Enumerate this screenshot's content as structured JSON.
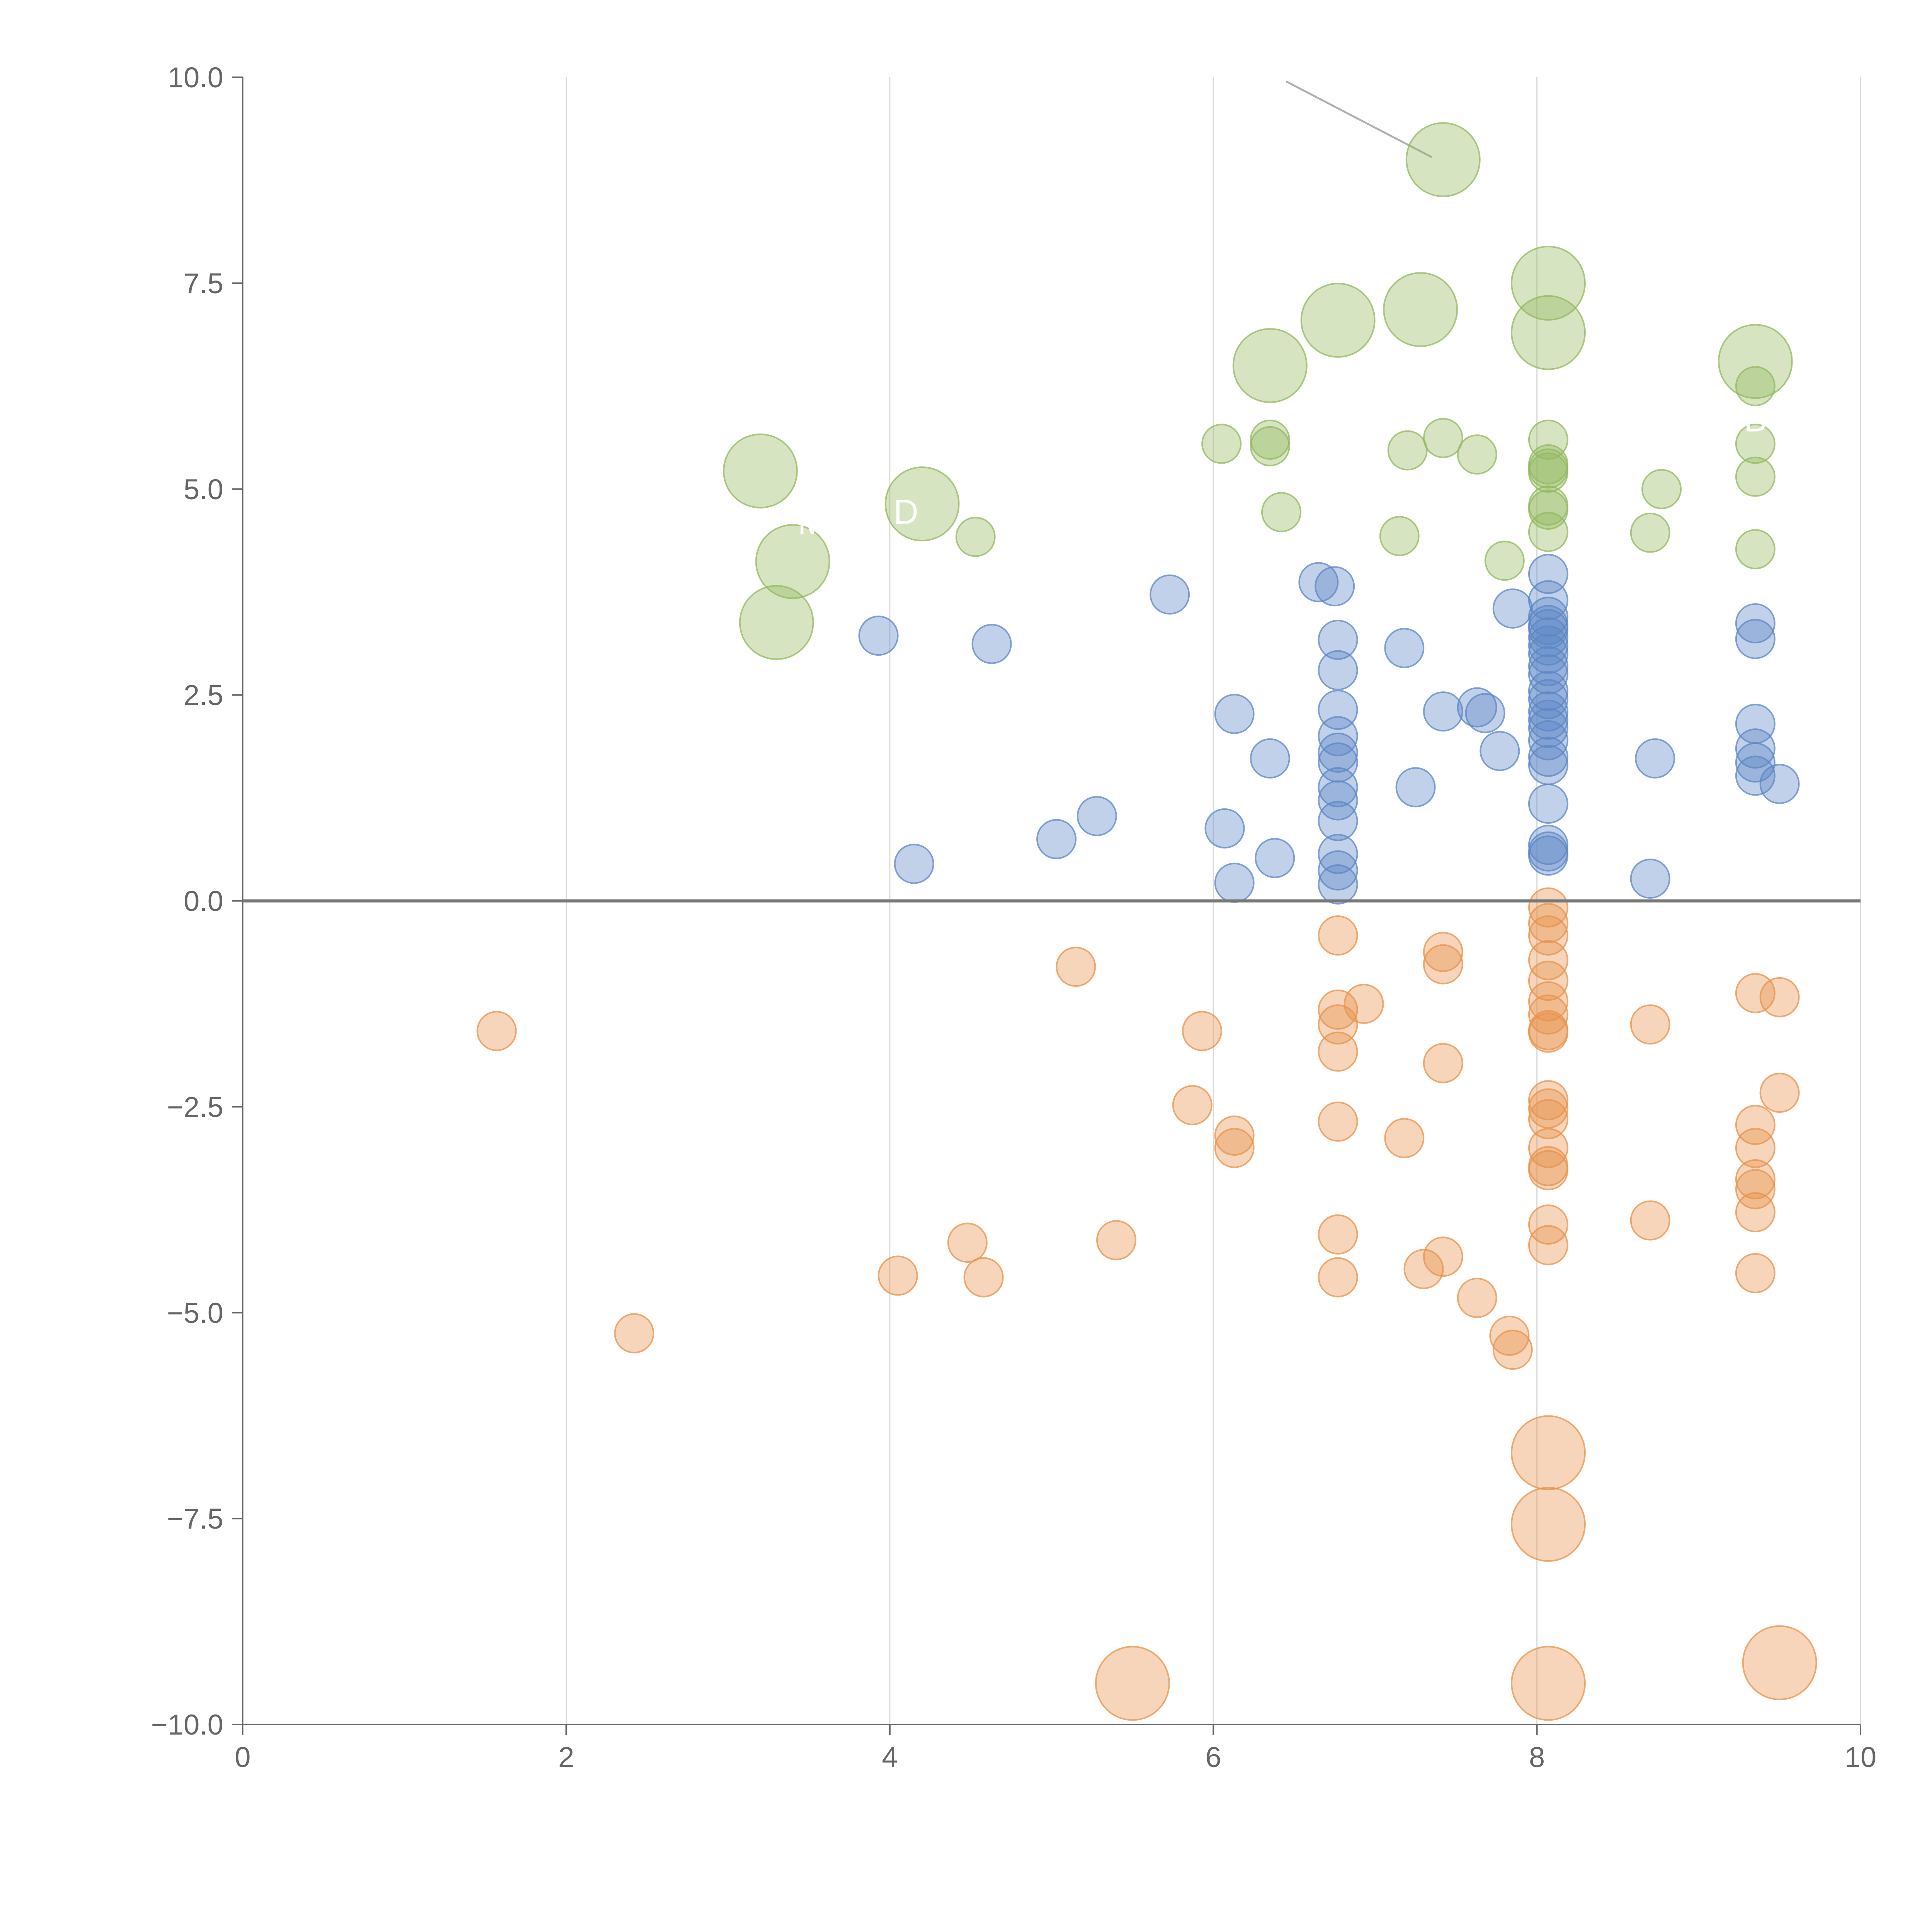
{
  "chart_data": {
    "type": "scatter",
    "title": "",
    "xlabel": "",
    "ylabel": "",
    "xlim": [
      0,
      10
    ],
    "ylim": [
      -10,
      10
    ],
    "xticks": [
      0,
      2,
      4,
      6,
      8,
      10
    ],
    "xtick_labels": [
      "0",
      "2",
      "4",
      "6",
      "8",
      "10"
    ],
    "yticks": [
      -10,
      -7.5,
      -5,
      -2.5,
      0,
      2.5,
      5,
      7.5,
      10
    ],
    "ytick_labels": [
      "−10.0",
      "−7.5",
      "−5.0",
      "−2.5",
      "0.0",
      "2.5",
      "5.0",
      "7.5",
      "10.0"
    ],
    "grid": "vertical",
    "legend": "none",
    "series": [
      {
        "color": "#92b85e",
        "points": [
          [
            7.42,
            9.0,
            "large"
          ],
          [
            8.07,
            7.5,
            "large"
          ],
          [
            6.77,
            7.05,
            "large"
          ],
          [
            7.28,
            7.18,
            "large"
          ],
          [
            8.07,
            6.9,
            "large"
          ],
          [
            6.35,
            6.5,
            "large"
          ],
          [
            9.35,
            6.55,
            "large"
          ],
          [
            3.2,
            5.22,
            "large"
          ],
          [
            4.2,
            4.82,
            "large"
          ],
          [
            3.4,
            4.12,
            "large"
          ],
          [
            3.3,
            3.38,
            "large"
          ],
          [
            6.05,
            5.55,
            "small"
          ],
          [
            6.35,
            5.6,
            "small"
          ],
          [
            6.35,
            5.52,
            "small"
          ],
          [
            7.42,
            5.62,
            "small"
          ],
          [
            7.2,
            5.47,
            "small"
          ],
          [
            7.63,
            5.42,
            "small"
          ],
          [
            8.07,
            5.6,
            "small"
          ],
          [
            8.07,
            5.3,
            "small"
          ],
          [
            8.07,
            5.25,
            "small"
          ],
          [
            8.07,
            5.2,
            "small"
          ],
          [
            8.07,
            4.8,
            "small"
          ],
          [
            8.07,
            4.75,
            "small"
          ],
          [
            8.07,
            4.48,
            "small"
          ],
          [
            8.77,
            5.0,
            "small"
          ],
          [
            8.7,
            4.47,
            "small"
          ],
          [
            9.35,
            6.25,
            "small"
          ],
          [
            9.35,
            5.55,
            "small"
          ],
          [
            9.35,
            5.15,
            "small"
          ],
          [
            9.35,
            4.27,
            "small"
          ],
          [
            6.42,
            4.72,
            "small"
          ],
          [
            4.53,
            4.42,
            "small"
          ],
          [
            7.15,
            4.43,
            "small"
          ],
          [
            7.8,
            4.13,
            "small"
          ]
        ]
      },
      {
        "color": "#5b86c5",
        "points": [
          [
            3.93,
            3.22,
            "small"
          ],
          [
            4.63,
            3.12,
            "small"
          ],
          [
            5.73,
            3.72,
            "small"
          ],
          [
            4.15,
            0.45,
            "small"
          ],
          [
            5.03,
            0.75,
            "small"
          ],
          [
            5.28,
            1.03,
            "small"
          ],
          [
            6.07,
            0.88,
            "small"
          ],
          [
            6.13,
            2.27,
            "small"
          ],
          [
            6.13,
            0.22,
            "small"
          ],
          [
            6.35,
            1.73,
            "small"
          ],
          [
            6.38,
            0.52,
            "small"
          ],
          [
            6.65,
            3.87,
            "small"
          ],
          [
            6.75,
            3.82,
            "small"
          ],
          [
            6.77,
            3.17,
            "small"
          ],
          [
            6.77,
            2.8,
            "small"
          ],
          [
            6.77,
            2.32,
            "small"
          ],
          [
            6.77,
            2.0,
            "small"
          ],
          [
            6.77,
            1.8,
            "small"
          ],
          [
            6.77,
            1.68,
            "small"
          ],
          [
            6.77,
            1.38,
            "small"
          ],
          [
            6.77,
            1.22,
            "small"
          ],
          [
            6.77,
            0.97,
            "small"
          ],
          [
            6.77,
            0.57,
            "small"
          ],
          [
            6.77,
            0.37,
            "small"
          ],
          [
            6.77,
            0.2,
            "small"
          ],
          [
            7.18,
            3.07,
            "small"
          ],
          [
            7.25,
            1.38,
            "small"
          ],
          [
            7.42,
            2.3,
            "small"
          ],
          [
            7.63,
            2.35,
            "small"
          ],
          [
            7.68,
            2.28,
            "small"
          ],
          [
            7.77,
            1.82,
            "small"
          ],
          [
            7.85,
            3.55,
            "small"
          ],
          [
            8.07,
            3.97,
            "small"
          ],
          [
            8.07,
            3.65,
            "small"
          ],
          [
            8.07,
            3.45,
            "small"
          ],
          [
            8.07,
            3.35,
            "small"
          ],
          [
            8.07,
            3.3,
            "small"
          ],
          [
            8.07,
            3.2,
            "small"
          ],
          [
            8.07,
            3.1,
            "small"
          ],
          [
            8.07,
            3.0,
            "small"
          ],
          [
            8.07,
            2.85,
            "small"
          ],
          [
            8.07,
            2.75,
            "small"
          ],
          [
            8.07,
            2.55,
            "small"
          ],
          [
            8.07,
            2.45,
            "small"
          ],
          [
            8.07,
            2.3,
            "small"
          ],
          [
            8.07,
            2.2,
            "small"
          ],
          [
            8.07,
            2.1,
            "small"
          ],
          [
            8.07,
            1.95,
            "small"
          ],
          [
            8.07,
            1.75,
            "small"
          ],
          [
            8.07,
            1.65,
            "small"
          ],
          [
            8.07,
            1.18,
            "small"
          ],
          [
            8.07,
            0.68,
            "small"
          ],
          [
            8.07,
            0.6,
            "small"
          ],
          [
            8.07,
            0.55,
            "small"
          ],
          [
            8.7,
            0.27,
            "small"
          ],
          [
            8.73,
            1.73,
            "small"
          ],
          [
            9.35,
            3.37,
            "small"
          ],
          [
            9.35,
            3.18,
            "small"
          ],
          [
            9.35,
            2.15,
            "small"
          ],
          [
            9.35,
            1.85,
            "small"
          ],
          [
            9.35,
            1.68,
            "small"
          ],
          [
            9.35,
            1.52,
            "small"
          ],
          [
            9.5,
            1.42,
            "small"
          ]
        ]
      },
      {
        "color": "#e8914a",
        "points": [
          [
            1.57,
            -1.58,
            "small"
          ],
          [
            2.42,
            -5.25,
            "small"
          ],
          [
            4.05,
            -4.55,
            "small"
          ],
          [
            4.48,
            -4.15,
            "small"
          ],
          [
            4.58,
            -4.57,
            "small"
          ],
          [
            5.15,
            -0.8,
            "small"
          ],
          [
            5.4,
            -4.12,
            "small"
          ],
          [
            5.87,
            -2.48,
            "small"
          ],
          [
            5.93,
            -1.58,
            "small"
          ],
          [
            6.13,
            -2.85,
            "small"
          ],
          [
            6.13,
            -3.0,
            "small"
          ],
          [
            6.77,
            -0.42,
            "small"
          ],
          [
            6.77,
            -1.32,
            "small"
          ],
          [
            6.77,
            -1.5,
            "small"
          ],
          [
            6.77,
            -1.83,
            "small"
          ],
          [
            6.77,
            -2.68,
            "small"
          ],
          [
            6.77,
            -4.05,
            "small"
          ],
          [
            6.77,
            -4.57,
            "small"
          ],
          [
            6.93,
            -1.25,
            "small"
          ],
          [
            7.18,
            -2.88,
            "small"
          ],
          [
            7.3,
            -4.47,
            "small"
          ],
          [
            7.42,
            -0.62,
            "small"
          ],
          [
            7.42,
            -0.77,
            "small"
          ],
          [
            7.42,
            -1.97,
            "small"
          ],
          [
            7.42,
            -4.32,
            "small"
          ],
          [
            7.63,
            -4.82,
            "small"
          ],
          [
            7.83,
            -5.28,
            "small"
          ],
          [
            7.85,
            -5.45,
            "small"
          ],
          [
            8.07,
            -0.08,
            "small"
          ],
          [
            8.07,
            -0.27,
            "small"
          ],
          [
            8.07,
            -0.42,
            "small"
          ],
          [
            8.07,
            -0.72,
            "small"
          ],
          [
            8.07,
            -0.97,
            "small"
          ],
          [
            8.07,
            -1.22,
            "small"
          ],
          [
            8.07,
            -1.38,
            "small"
          ],
          [
            8.07,
            -1.57,
            "small"
          ],
          [
            8.07,
            -1.6,
            "small"
          ],
          [
            8.07,
            -2.42,
            "small"
          ],
          [
            8.07,
            -2.52,
            "small"
          ],
          [
            8.07,
            -2.65,
            "small"
          ],
          [
            8.07,
            -3.0,
            "small"
          ],
          [
            8.07,
            -3.22,
            "small"
          ],
          [
            8.07,
            -3.27,
            "small"
          ],
          [
            8.07,
            -3.93,
            "small"
          ],
          [
            8.07,
            -4.18,
            "small"
          ],
          [
            8.7,
            -1.5,
            "small"
          ],
          [
            8.7,
            -3.88,
            "small"
          ],
          [
            9.35,
            -1.12,
            "small"
          ],
          [
            9.35,
            -2.72,
            "small"
          ],
          [
            9.35,
            -3.0,
            "small"
          ],
          [
            9.35,
            -3.38,
            "small"
          ],
          [
            9.35,
            -3.5,
            "small"
          ],
          [
            9.35,
            -3.78,
            "small"
          ],
          [
            9.35,
            -4.52,
            "small"
          ],
          [
            9.5,
            -1.17,
            "small"
          ],
          [
            9.5,
            -2.33,
            "small"
          ],
          [
            8.07,
            -6.7,
            "large"
          ],
          [
            8.07,
            -7.57,
            "large"
          ],
          [
            8.07,
            -9.5,
            "large"
          ],
          [
            5.5,
            -9.5,
            "large"
          ],
          [
            9.5,
            -9.25,
            "large"
          ]
        ]
      }
    ],
    "annotations": [
      {
        "text": "M",
        "x": 3.52,
        "y": 4.45
      },
      {
        "text": "D",
        "x": 4.1,
        "y": 4.58
      },
      {
        "text": "B",
        "x": 9.35,
        "y": 5.7
      }
    ]
  }
}
